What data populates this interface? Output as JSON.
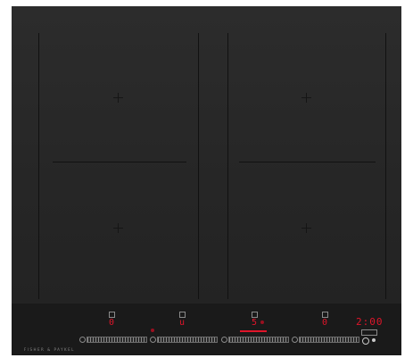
{
  "cooktop": {
    "brand": "FISHER & PAYKEL",
    "zones": [
      {
        "level": "0",
        "slider_fraction": 0.0
      },
      {
        "level": "u",
        "slider_fraction": 0.0
      },
      {
        "level": "5",
        "slider_fraction": 0.45
      },
      {
        "level": "0",
        "slider_fraction": 0.0
      }
    ],
    "timer": "2:00",
    "colors": {
      "glass": "#262626",
      "panel": "#1a1a1a",
      "display": "#e0152a"
    },
    "icons": [
      "zone-select-icon",
      "power-icon",
      "info-icon",
      "lock-icon",
      "timer-icon"
    ]
  }
}
